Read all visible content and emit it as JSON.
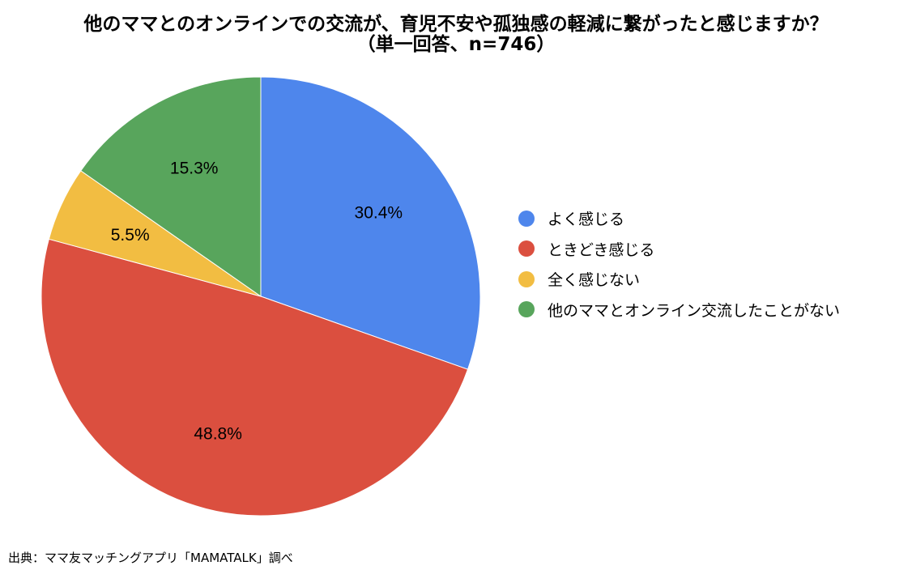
{
  "chart_data": {
    "type": "pie",
    "title": "他のママとのオンラインでの交流が、育児不安や孤独感の軽減に繋がったと感じますか？",
    "subtitle": "（単一回答、n=746）",
    "slices": [
      {
        "label": "よく感じる",
        "value": 30.4,
        "value_label": "30.4%",
        "color": "#4E86EC"
      },
      {
        "label": "ときどき感じる",
        "value": 48.8,
        "value_label": "48.8%",
        "color": "#DB4F3F"
      },
      {
        "label": "全く感じない",
        "value": 5.5,
        "value_label": "5.5%",
        "color": "#F2BD42"
      },
      {
        "label": "他のママとオンライン交流したことがない",
        "value": 15.3,
        "value_label": "15.3%",
        "color": "#58A55C"
      }
    ],
    "start_angle": "12 o'clock",
    "direction": "clockwise",
    "legend_position": "right"
  },
  "source_note": "出典：ママ友マッチングアプリ「MAMATALK」調べ"
}
